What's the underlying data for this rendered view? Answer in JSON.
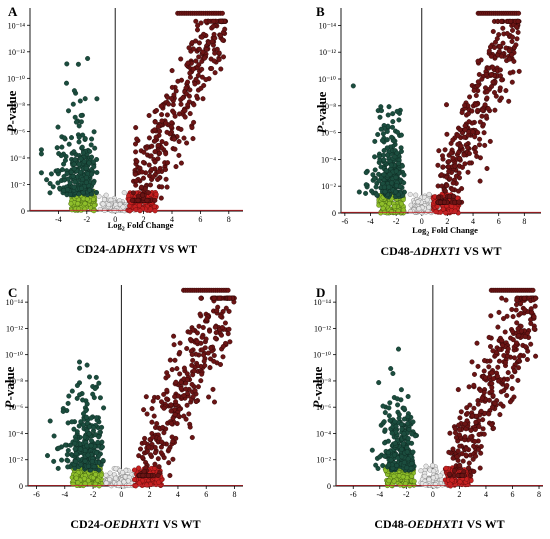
{
  "figure": {
    "description_panels": [
      "A",
      "B",
      "C",
      "D"
    ]
  },
  "colors": {
    "down_strong": "#1b4d3e",
    "down_weak": "#8fbf2a",
    "up_strong": "#6b1414",
    "up_weak": "#c62020",
    "nonsig": "#e6e6e6",
    "threshold_line": "#c0262c"
  },
  "chart_data": [
    {
      "type": "scatter",
      "panel_label": "A",
      "title_parts": [
        "CD24-",
        "ΔDHXT1",
        " VS WT"
      ],
      "ylabel_italic": "P",
      "ylabel_rest": "-value",
      "xlabel": "Log2 Fold Change",
      "xlabel_prefix": "Log",
      "xlabel_sub": "2",
      "xlabel_suffix": " Fold Change",
      "xlim": [
        -6,
        9
      ],
      "x_ticks": [
        "-4",
        "-2",
        "0",
        "2",
        "4",
        "6",
        "8"
      ],
      "x_tick_values": [
        -4,
        -2,
        0,
        2,
        4,
        6,
        8
      ],
      "y_ticks": [
        "0",
        "10⁻²",
        "10⁻⁴",
        "10⁻⁶",
        "10⁻⁸",
        "10⁻¹⁰",
        "10⁻¹²",
        "10⁻¹⁴"
      ],
      "y_tick_values": [
        0,
        2,
        4,
        6,
        8,
        10,
        12,
        14
      ],
      "ylim": [
        0,
        15
      ],
      "y_cap": 14.9,
      "scale": "-log10(p)",
      "seed": 11,
      "down_range": [
        -5.2,
        -0.8
      ],
      "up_range": [
        0.8,
        7.8
      ]
    },
    {
      "type": "scatter",
      "panel_label": "B",
      "title_parts": [
        "CD48-",
        "ΔDHXT1",
        " VS WT"
      ],
      "ylabel_italic": "P",
      "ylabel_rest": "-value",
      "xlabel": "Log2 Fold Change",
      "xlabel_prefix": "Log",
      "xlabel_sub": "2",
      "xlabel_suffix": " Fold Change",
      "xlim": [
        -6.3,
        9.3
      ],
      "x_ticks": [
        "-6",
        "-4",
        "-2",
        "0",
        "2",
        "4",
        "6",
        "8"
      ],
      "x_tick_values": [
        -6,
        -4,
        -2,
        0,
        2,
        4,
        6,
        8
      ],
      "y_ticks": [
        "0",
        "10⁻²",
        "10⁻⁴",
        "10⁻⁶",
        "10⁻⁸",
        "10⁻¹⁰",
        "10⁻¹²",
        "10⁻¹⁴"
      ],
      "y_tick_values": [
        0,
        2,
        4,
        6,
        8,
        10,
        12,
        14
      ],
      "ylim": [
        0,
        15
      ],
      "y_cap": 14.9,
      "scale": "-log10(p)",
      "seed": 23,
      "down_range": [
        -5.6,
        -0.8
      ],
      "up_range": [
        0.8,
        7.6
      ]
    },
    {
      "type": "scatter",
      "panel_label": "C",
      "title_parts": [
        "CD24-",
        "OEDHXT1",
        " VS WT"
      ],
      "ylabel_italic": "P",
      "ylabel_rest": "-value",
      "xlabel": "",
      "xlim": [
        -6.6,
        8.6
      ],
      "x_ticks": [
        "-6",
        "-4",
        "-2",
        "0",
        "2",
        "4",
        "6",
        "8"
      ],
      "x_tick_values": [
        -6,
        -4,
        -2,
        0,
        2,
        4,
        6,
        8
      ],
      "y_ticks": [
        "0",
        "10⁻²",
        "10⁻⁴",
        "10⁻⁶",
        "10⁻⁸",
        "10⁻¹⁰",
        "10⁻¹²",
        "10⁻¹⁴"
      ],
      "y_tick_values": [
        0,
        2,
        4,
        6,
        8,
        10,
        12,
        14
      ],
      "ylim": [
        0,
        15
      ],
      "y_cap": 14.9,
      "scale": "-log10(p)",
      "seed": 37,
      "down_range": [
        -5.8,
        -0.8
      ],
      "up_range": [
        0.8,
        8.0
      ]
    },
    {
      "type": "scatter",
      "panel_label": "D",
      "title_parts": [
        "CD48-",
        "OEDHXT1",
        " VS WT"
      ],
      "ylabel_italic": "P",
      "ylabel_rest": "-value",
      "xlabel": "",
      "xlim": [
        -7.3,
        8.3
      ],
      "x_ticks": [
        "-6",
        "-4",
        "-2",
        "0",
        "2",
        "4",
        "6",
        "8"
      ],
      "x_tick_values": [
        -6,
        -4,
        -2,
        0,
        2,
        4,
        6,
        8
      ],
      "y_ticks": [
        "0",
        "10⁻²",
        "10⁻⁴",
        "10⁻⁶",
        "10⁻⁸",
        "10⁻¹⁰",
        "10⁻¹²",
        "10⁻¹⁴"
      ],
      "y_tick_values": [
        0,
        2,
        4,
        6,
        8,
        10,
        12,
        14
      ],
      "ylim": [
        0,
        15
      ],
      "y_cap": 14.9,
      "scale": "-log10(p)",
      "seed": 53,
      "down_range": [
        -6.0,
        -0.8
      ],
      "up_range": [
        0.8,
        7.8
      ]
    }
  ]
}
